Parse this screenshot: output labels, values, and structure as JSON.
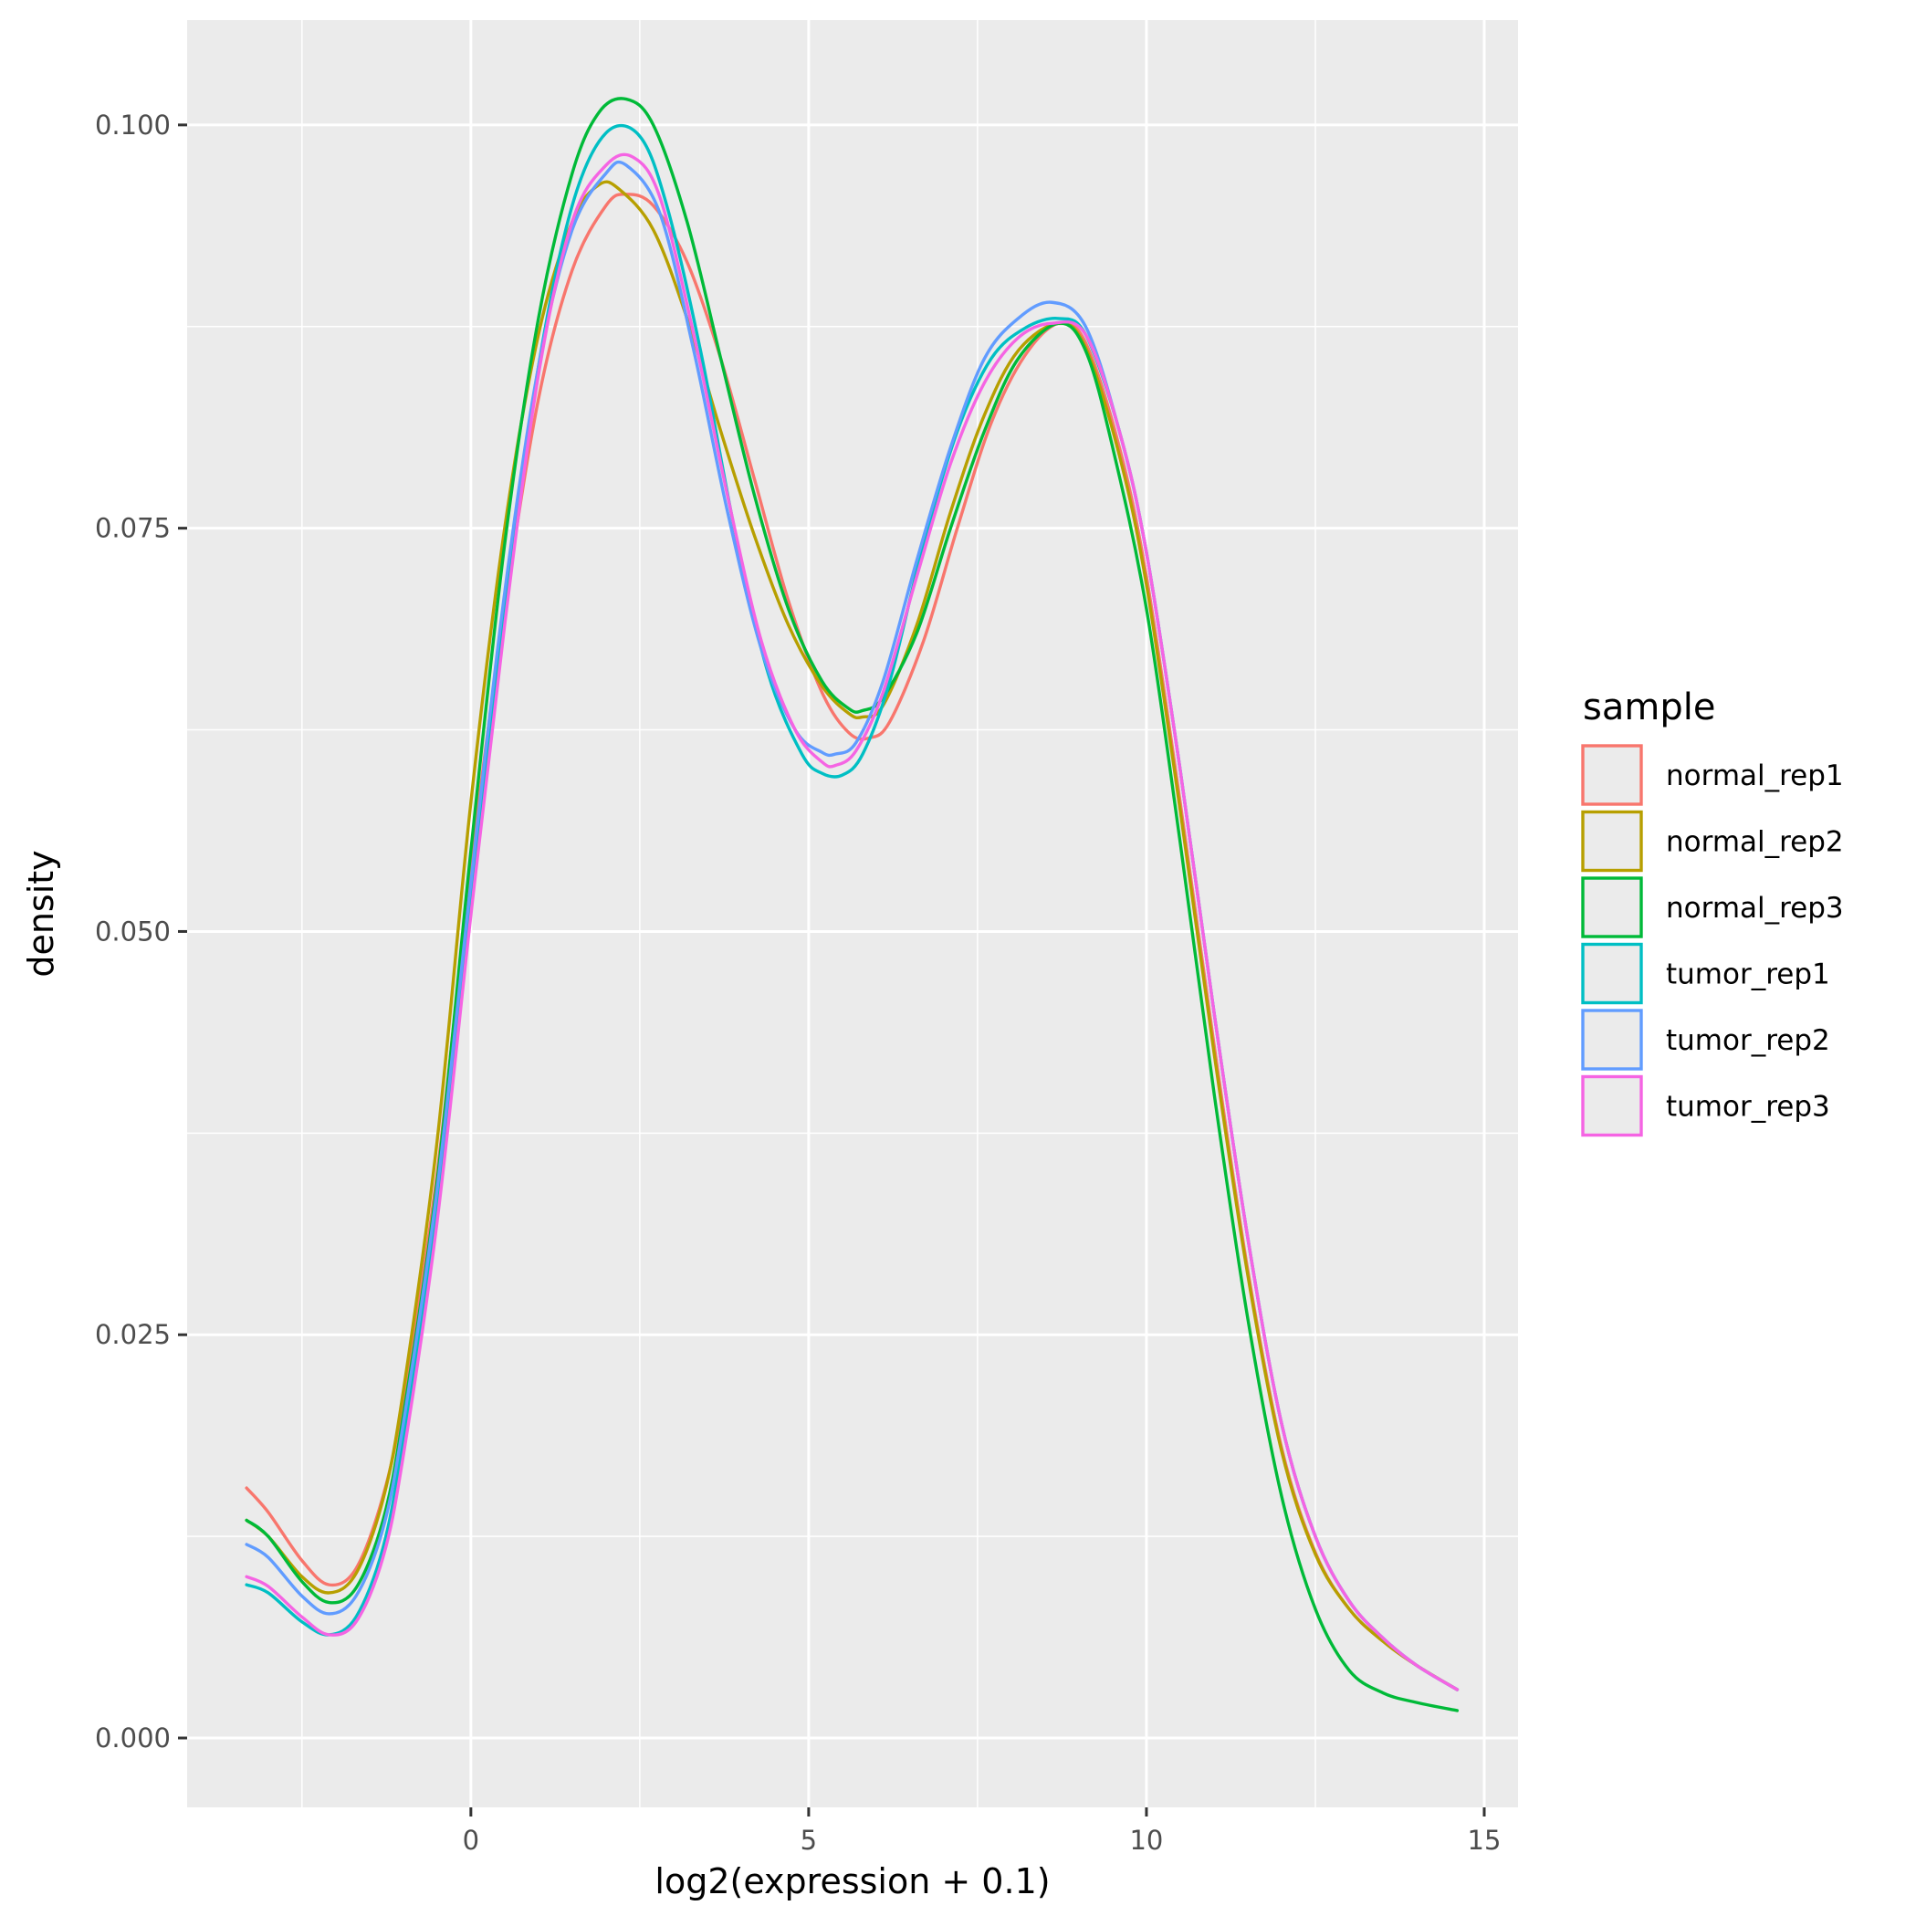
{
  "chart_data": {
    "type": "line",
    "title": "",
    "xlabel": "log2(expression + 0.1)",
    "ylabel": "density",
    "xlim": [
      -4.2,
      15.5
    ],
    "ylim": [
      -0.0043,
      0.1065
    ],
    "xticks": [
      0,
      5,
      10,
      15
    ],
    "xtick_labels": [
      "0",
      "5",
      "10",
      "15"
    ],
    "xminor": [
      -2.5,
      2.5,
      7.5,
      12.5
    ],
    "yticks": [
      0.0,
      0.025,
      0.05,
      0.075,
      0.1
    ],
    "ytick_labels": [
      "0.000",
      "0.025",
      "0.050",
      "0.075",
      "0.100"
    ],
    "yminor": [
      0.0125,
      0.0375,
      0.0625,
      0.0875
    ],
    "grid": true,
    "panel_background": "#EBEBEB",
    "legend": {
      "title": "sample",
      "position": "right"
    },
    "series": [
      {
        "name": "normal_rep1",
        "color": "#F8766D",
        "points": [
          [
            -3.32,
            0.0155
          ],
          [
            -3,
            0.014
          ],
          [
            -2.5,
            0.011
          ],
          [
            -2.1,
            0.0095
          ],
          [
            -1.7,
            0.0105
          ],
          [
            -1.3,
            0.015
          ],
          [
            -1,
            0.021
          ],
          [
            -0.5,
            0.035
          ],
          [
            0,
            0.054
          ],
          [
            0.5,
            0.07
          ],
          [
            1,
            0.083
          ],
          [
            1.5,
            0.091
          ],
          [
            2,
            0.095
          ],
          [
            2.3,
            0.0957
          ],
          [
            2.7,
            0.095
          ],
          [
            3.2,
            0.0915
          ],
          [
            3.7,
            0.0855
          ],
          [
            4.2,
            0.078
          ],
          [
            4.7,
            0.0705
          ],
          [
            5.2,
            0.0648
          ],
          [
            5.6,
            0.0623
          ],
          [
            5.9,
            0.062
          ],
          [
            6.2,
            0.063
          ],
          [
            6.7,
            0.068
          ],
          [
            7.2,
            0.075
          ],
          [
            7.7,
            0.0815
          ],
          [
            8.2,
            0.0857
          ],
          [
            8.7,
            0.0877
          ],
          [
            9.1,
            0.0865
          ],
          [
            9.6,
            0.08
          ],
          [
            10,
            0.072
          ],
          [
            10.5,
            0.058
          ],
          [
            11,
            0.043
          ],
          [
            11.5,
            0.029
          ],
          [
            12,
            0.018
          ],
          [
            12.5,
            0.0115
          ],
          [
            13,
            0.008
          ],
          [
            13.5,
            0.006
          ],
          [
            14,
            0.0045
          ],
          [
            14.6,
            0.003
          ]
        ]
      },
      {
        "name": "normal_rep2",
        "color": "#B79F00",
        "points": [
          [
            -3.32,
            0.0135
          ],
          [
            -3,
            0.0125
          ],
          [
            -2.5,
            0.01
          ],
          [
            -2.1,
            0.009
          ],
          [
            -1.7,
            0.0102
          ],
          [
            -1.3,
            0.0148
          ],
          [
            -1,
            0.0215
          ],
          [
            -0.5,
            0.037
          ],
          [
            0,
            0.058
          ],
          [
            0.5,
            0.075
          ],
          [
            1,
            0.087
          ],
          [
            1.5,
            0.094
          ],
          [
            1.9,
            0.0963
          ],
          [
            2.2,
            0.096
          ],
          [
            2.7,
            0.0935
          ],
          [
            3.2,
            0.088
          ],
          [
            3.7,
            0.081
          ],
          [
            4.2,
            0.0745
          ],
          [
            4.7,
            0.069
          ],
          [
            5.2,
            0.0652
          ],
          [
            5.6,
            0.0635
          ],
          [
            5.8,
            0.0633
          ],
          [
            6.1,
            0.064
          ],
          [
            6.6,
            0.069
          ],
          [
            7.1,
            0.076
          ],
          [
            7.6,
            0.082
          ],
          [
            8.1,
            0.086
          ],
          [
            8.7,
            0.0877
          ],
          [
            9.1,
            0.0862
          ],
          [
            9.6,
            0.0795
          ],
          [
            10,
            0.0715
          ],
          [
            10.5,
            0.0575
          ],
          [
            11,
            0.0425
          ],
          [
            11.5,
            0.0287
          ],
          [
            12,
            0.0178
          ],
          [
            12.5,
            0.0114
          ],
          [
            13,
            0.008
          ],
          [
            13.5,
            0.006
          ],
          [
            14,
            0.0045
          ],
          [
            14.6,
            0.003
          ]
        ]
      },
      {
        "name": "normal_rep3",
        "color": "#00BA38",
        "points": [
          [
            -3.32,
            0.0135
          ],
          [
            -3,
            0.0125
          ],
          [
            -2.5,
            0.0097
          ],
          [
            -2.1,
            0.0084
          ],
          [
            -1.7,
            0.0093
          ],
          [
            -1.3,
            0.0135
          ],
          [
            -1,
            0.02
          ],
          [
            -0.5,
            0.0345
          ],
          [
            0,
            0.055
          ],
          [
            0.5,
            0.074
          ],
          [
            1,
            0.088
          ],
          [
            1.5,
            0.097
          ],
          [
            1.9,
            0.1008
          ],
          [
            2.3,
            0.1016
          ],
          [
            2.7,
            0.1
          ],
          [
            3.2,
            0.094
          ],
          [
            3.7,
            0.0855
          ],
          [
            4.2,
            0.077
          ],
          [
            4.7,
            0.07
          ],
          [
            5.2,
            0.0655
          ],
          [
            5.6,
            0.0638
          ],
          [
            5.8,
            0.0637
          ],
          [
            6.1,
            0.0645
          ],
          [
            6.6,
            0.0685
          ],
          [
            7.1,
            0.075
          ],
          [
            7.6,
            0.081
          ],
          [
            8.1,
            0.0855
          ],
          [
            8.7,
            0.0877
          ],
          [
            9.1,
            0.086
          ],
          [
            9.5,
            0.08
          ],
          [
            10,
            0.07
          ],
          [
            10.5,
            0.0555
          ],
          [
            11,
            0.04
          ],
          [
            11.5,
            0.026
          ],
          [
            12,
            0.015
          ],
          [
            12.5,
            0.008
          ],
          [
            13,
            0.0042
          ],
          [
            13.5,
            0.0028
          ],
          [
            14,
            0.0022
          ],
          [
            14.6,
            0.0017
          ]
        ]
      },
      {
        "name": "tumor_rep1",
        "color": "#00BFC4",
        "points": [
          [
            -3.32,
            0.0095
          ],
          [
            -3,
            0.009
          ],
          [
            -2.5,
            0.0072
          ],
          [
            -2.1,
            0.0064
          ],
          [
            -1.7,
            0.0075
          ],
          [
            -1.3,
            0.0118
          ],
          [
            -1,
            0.0185
          ],
          [
            -0.5,
            0.033
          ],
          [
            0,
            0.052
          ],
          [
            0.5,
            0.07
          ],
          [
            1,
            0.085
          ],
          [
            1.5,
            0.095
          ],
          [
            2,
            0.0995
          ],
          [
            2.5,
            0.0993
          ],
          [
            2.9,
            0.095
          ],
          [
            3.4,
            0.086
          ],
          [
            3.9,
            0.075
          ],
          [
            4.4,
            0.066
          ],
          [
            4.9,
            0.061
          ],
          [
            5.2,
            0.0598
          ],
          [
            5.5,
            0.0597
          ],
          [
            5.8,
            0.061
          ],
          [
            6.2,
            0.0655
          ],
          [
            6.7,
            0.074
          ],
          [
            7.2,
            0.081
          ],
          [
            7.7,
            0.0855
          ],
          [
            8.2,
            0.0874
          ],
          [
            8.7,
            0.088
          ],
          [
            9.1,
            0.087
          ],
          [
            9.6,
            0.081
          ],
          [
            10,
            0.0735
          ],
          [
            10.5,
            0.06
          ],
          [
            11,
            0.045
          ],
          [
            11.5,
            0.031
          ],
          [
            12,
            0.0195
          ],
          [
            12.5,
            0.0125
          ],
          [
            13,
            0.0085
          ],
          [
            13.5,
            0.0062
          ],
          [
            14,
            0.0045
          ],
          [
            14.6,
            0.003
          ]
        ]
      },
      {
        "name": "tumor_rep2",
        "color": "#619CFF",
        "points": [
          [
            -3.32,
            0.012
          ],
          [
            -3,
            0.0112
          ],
          [
            -2.5,
            0.0088
          ],
          [
            -2.1,
            0.0077
          ],
          [
            -1.7,
            0.0088
          ],
          [
            -1.3,
            0.013
          ],
          [
            -1,
            0.0195
          ],
          [
            -0.5,
            0.034
          ],
          [
            0,
            0.053
          ],
          [
            0.5,
            0.071
          ],
          [
            1,
            0.085
          ],
          [
            1.5,
            0.0935
          ],
          [
            2,
            0.097
          ],
          [
            2.3,
            0.0975
          ],
          [
            2.8,
            0.0945
          ],
          [
            3.3,
            0.086
          ],
          [
            3.8,
            0.076
          ],
          [
            4.3,
            0.0675
          ],
          [
            4.8,
            0.0625
          ],
          [
            5.2,
            0.0611
          ],
          [
            5.4,
            0.061
          ],
          [
            5.7,
            0.0617
          ],
          [
            6.1,
            0.0655
          ],
          [
            6.6,
            0.073
          ],
          [
            7.1,
            0.08
          ],
          [
            7.6,
            0.0855
          ],
          [
            8.1,
            0.088
          ],
          [
            8.6,
            0.089
          ],
          [
            9.1,
            0.0875
          ],
          [
            9.6,
            0.081
          ],
          [
            10,
            0.0735
          ],
          [
            10.5,
            0.06
          ],
          [
            11,
            0.045
          ],
          [
            11.5,
            0.031
          ],
          [
            12,
            0.0195
          ],
          [
            12.5,
            0.0125
          ],
          [
            13,
            0.0085
          ],
          [
            13.5,
            0.0062
          ],
          [
            14,
            0.0045
          ],
          [
            14.6,
            0.003
          ]
        ]
      },
      {
        "name": "tumor_rep3",
        "color": "#F564E3",
        "points": [
          [
            -3.32,
            0.01
          ],
          [
            -3,
            0.0094
          ],
          [
            -2.5,
            0.0075
          ],
          [
            -2.1,
            0.0064
          ],
          [
            -1.7,
            0.0072
          ],
          [
            -1.3,
            0.0112
          ],
          [
            -1,
            0.0175
          ],
          [
            -0.5,
            0.032
          ],
          [
            0,
            0.051
          ],
          [
            0.5,
            0.069
          ],
          [
            1,
            0.0845
          ],
          [
            1.5,
            0.094
          ],
          [
            2,
            0.0975
          ],
          [
            2.4,
            0.098
          ],
          [
            2.8,
            0.0955
          ],
          [
            3.3,
            0.087
          ],
          [
            3.8,
            0.077
          ],
          [
            4.3,
            0.068
          ],
          [
            4.8,
            0.0625
          ],
          [
            5.2,
            0.0605
          ],
          [
            5.4,
            0.0603
          ],
          [
            5.7,
            0.0612
          ],
          [
            6.1,
            0.0648
          ],
          [
            6.6,
            0.072
          ],
          [
            7.1,
            0.079
          ],
          [
            7.6,
            0.084
          ],
          [
            8.1,
            0.0868
          ],
          [
            8.6,
            0.0877
          ],
          [
            9.1,
            0.087
          ],
          [
            9.6,
            0.081
          ],
          [
            10,
            0.0735
          ],
          [
            10.5,
            0.06
          ],
          [
            11,
            0.045
          ],
          [
            11.5,
            0.031
          ],
          [
            12,
            0.0195
          ],
          [
            12.5,
            0.0125
          ],
          [
            13,
            0.0085
          ],
          [
            13.5,
            0.0062
          ],
          [
            14,
            0.0045
          ],
          [
            14.6,
            0.003
          ]
        ]
      }
    ]
  }
}
